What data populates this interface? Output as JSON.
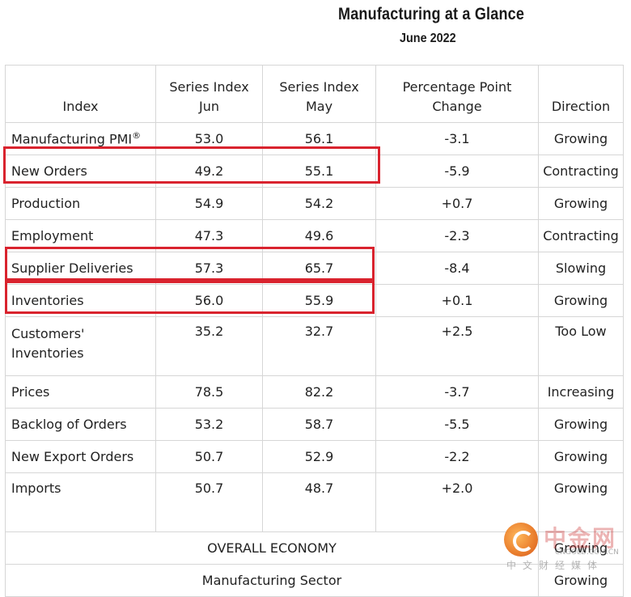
{
  "title": "Manufacturing at a Glance",
  "subtitle": "June 2022",
  "headers": {
    "index": "Index",
    "jun": [
      "Series Index",
      "Jun"
    ],
    "may": [
      "Series Index",
      "May"
    ],
    "change": [
      "Percentage Point",
      "Change"
    ],
    "direction": "Direction"
  },
  "rows": [
    {
      "index": "Manufacturing PMI",
      "sup": "®",
      "jun": "53.0",
      "may": "56.1",
      "change": "-3.1",
      "direction": "Growing"
    },
    {
      "index": "New Orders",
      "jun": "49.2",
      "may": "55.1",
      "change": "-5.9",
      "direction": "Contracting"
    },
    {
      "index": "Production",
      "jun": "54.9",
      "may": "54.2",
      "change": "+0.7",
      "direction": "Growing"
    },
    {
      "index": "Employment",
      "jun": "47.3",
      "may": "49.6",
      "change": "-2.3",
      "direction": "Contracting"
    },
    {
      "index": "Supplier Deliveries",
      "jun": "57.3",
      "may": "65.7",
      "change": "-8.4",
      "direction": "Slowing"
    },
    {
      "index": "Inventories",
      "jun": "56.0",
      "may": "55.9",
      "change": "+0.1",
      "direction": "Growing"
    },
    {
      "index": [
        "Customers'",
        "Inventories"
      ],
      "jun": "35.2",
      "may": "32.7",
      "change": "+2.5",
      "direction": "Too Low"
    },
    {
      "index": "Prices",
      "jun": "78.5",
      "may": "82.2",
      "change": "-3.7",
      "direction": "Increasing"
    },
    {
      "index": "Backlog of Orders",
      "jun": "53.2",
      "may": "58.7",
      "change": "-5.5",
      "direction": "Growing"
    },
    {
      "index": "New Export Orders",
      "jun": "50.7",
      "may": "52.9",
      "change": "-2.2",
      "direction": "Growing"
    },
    {
      "index": "Imports",
      "jun": "50.7",
      "may": "48.7",
      "change": "+2.0",
      "direction": "Growing"
    }
  ],
  "footer": [
    {
      "label": "OVERALL ECONOMY",
      "direction": "Growing"
    },
    {
      "label": "Manufacturing Sector",
      "direction": "Growing"
    }
  ],
  "highlighted_rows": [
    "New Orders",
    "Supplier Deliveries",
    "Inventories"
  ],
  "highlight_color": "#d9232e",
  "watermark": {
    "logo": "cngold-logo-icon",
    "name": "中金网",
    "site": "CNGOLD.COM.CN",
    "tagline": "中文财经媒体"
  }
}
